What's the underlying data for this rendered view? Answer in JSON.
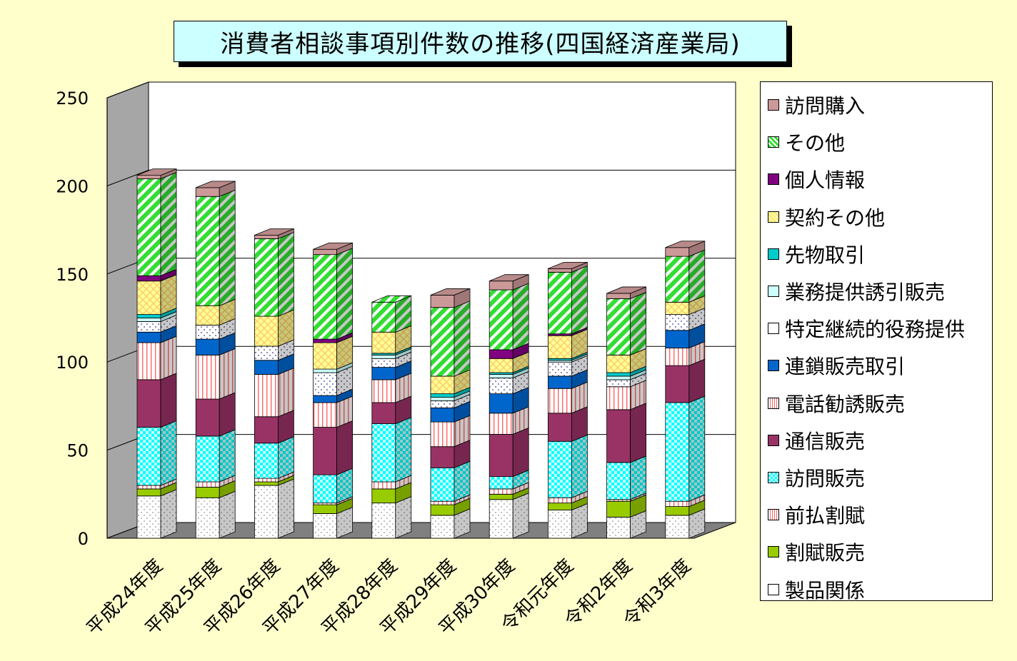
{
  "chart_data": {
    "type": "bar",
    "stacked": true,
    "three_d": true,
    "title": "消費者相談事項別件数の推移(四国経済産業局)",
    "xlabel": "",
    "ylabel": "",
    "ylim": [
      0,
      250
    ],
    "yticks": [
      "0",
      "50",
      "100",
      "150",
      "200",
      "250"
    ],
    "grid": true,
    "legend_position": "right",
    "categories": [
      "平成24年度",
      "平成25年度",
      "平成26年度",
      "平成27年度",
      "平成28年度",
      "平成29年度",
      "平成30年度",
      "令和元年度",
      "令和2年度",
      "令和3年度"
    ],
    "series": [
      {
        "name": "製品関係",
        "color": "#ffffff",
        "pattern": "dots",
        "values": [
          24,
          23,
          30,
          14,
          20,
          13,
          22,
          16,
          12,
          13
        ]
      },
      {
        "name": "割賦販売",
        "color": "#99cc00",
        "pattern": "solid",
        "values": [
          4,
          6,
          2,
          5,
          8,
          6,
          3,
          4,
          9,
          5
        ]
      },
      {
        "name": "前払割賦",
        "color": "#ffffff",
        "pattern": "vlines-red",
        "values": [
          2,
          3,
          2,
          1,
          4,
          2,
          3,
          3,
          1,
          3
        ]
      },
      {
        "name": "訪問販売",
        "color": "#00ffff",
        "pattern": "checker",
        "values": [
          33,
          26,
          20,
          16,
          33,
          19,
          7,
          32,
          21,
          56
        ]
      },
      {
        "name": "通信販売",
        "color": "#993366",
        "pattern": "solid",
        "values": [
          27,
          21,
          15,
          27,
          12,
          12,
          24,
          16,
          30,
          21
        ]
      },
      {
        "name": "電話勧誘販売",
        "color": "#ffffff",
        "pattern": "vlines-red",
        "values": [
          21,
          25,
          24,
          14,
          13,
          14,
          12,
          14,
          13,
          10
        ]
      },
      {
        "name": "連鎖販売取引",
        "color": "#0066cc",
        "pattern": "solid",
        "values": [
          6,
          9,
          8,
          4,
          7,
          8,
          11,
          7,
          0,
          10
        ]
      },
      {
        "name": "特定継続的役務提供",
        "color": "#ffffff",
        "pattern": "dots-blue",
        "values": [
          6,
          8,
          8,
          13,
          5,
          4,
          9,
          8,
          4,
          9
        ]
      },
      {
        "name": "業務提供誘引販売",
        "color": "#ccffff",
        "pattern": "solid",
        "values": [
          2,
          0,
          0,
          2,
          2,
          2,
          2,
          1,
          2,
          0
        ]
      },
      {
        "name": "先物取引",
        "color": "#00cccc",
        "pattern": "solid",
        "values": [
          2,
          0,
          0,
          0,
          1,
          2,
          1,
          1,
          2,
          0
        ]
      },
      {
        "name": "契約その他",
        "color": "#ffff99",
        "pattern": "cross",
        "values": [
          19,
          11,
          17,
          15,
          12,
          10,
          8,
          13,
          10,
          7
        ]
      },
      {
        "name": "個人情報",
        "color": "#800080",
        "pattern": "solid",
        "values": [
          3,
          0,
          0,
          2,
          0,
          0,
          5,
          1,
          0,
          0
        ]
      },
      {
        "name": "その他",
        "color": "#33cc33",
        "pattern": "diag",
        "values": [
          55,
          62,
          44,
          48,
          17,
          39,
          34,
          35,
          32,
          26
        ]
      },
      {
        "name": "訪問購入",
        "color": "#cc9999",
        "pattern": "solid",
        "values": [
          2,
          5,
          2,
          3,
          0,
          7,
          5,
          2,
          3,
          5
        ]
      }
    ]
  }
}
